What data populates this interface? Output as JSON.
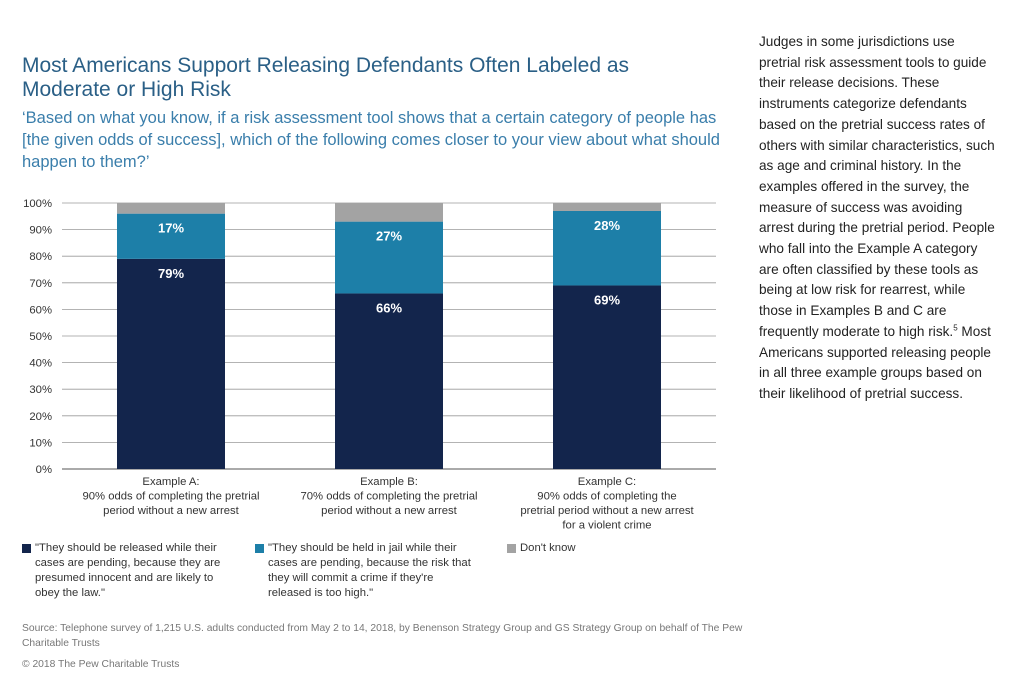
{
  "title": "Most Americans Support Releasing Defendants Often Labeled as Moderate or High Risk",
  "subtitle": "‘Based on what you know, if a risk assessment tool shows that a certain category of people has [the given odds of success], which of the following comes closer to your view about what should happen to them?’",
  "sidebar": {
    "text_before": "Judges in some jurisdictions use pretrial risk assessment tools to guide their release decisions. These instruments categorize defendants based on the pretrial success rates of others with similar characteristics, such as age and criminal history. In the examples offered in the survey, the measure of success was avoiding arrest during the pretrial period. People who fall into the Example A category are often classified by these tools as being at low risk for rearrest, while those in Examples B and C are frequently moderate to high risk.",
    "footnote": "5",
    "text_after": " Most Americans supported releasing people in all three example groups based on their likelihood of pretrial success."
  },
  "chart_data": {
    "type": "bar",
    "stacked": true,
    "categories": [
      [
        "Example A:",
        "90% odds of completing the pretrial",
        "period without a new arrest"
      ],
      [
        "Example B:",
        "70% odds of completing the pretrial",
        "period without a new arrest"
      ],
      [
        "Example C:",
        "90% odds of completing the",
        "pretrial period without a new arrest",
        "for a violent crime"
      ]
    ],
    "series": [
      {
        "name": "\"They should be released while their cases are pending, because they are presumed innocent and are likely to obey the law.\"",
        "values": [
          79,
          66,
          69
        ],
        "labels": [
          "79%",
          "66%",
          "69%"
        ],
        "color": "#13254c"
      },
      {
        "name": "\"They should be held in jail while their cases are pending, because the risk that they will commit a crime if they're released is too high.\"",
        "values": [
          17,
          27,
          28
        ],
        "labels": [
          "17%",
          "27%",
          "28%"
        ],
        "color": "#1d7fa8"
      },
      {
        "name": "Don't know",
        "values": [
          4,
          7,
          3
        ],
        "labels": [
          "",
          "",
          ""
        ],
        "color": "#a3a3a3"
      }
    ],
    "yticks": [
      "0%",
      "10%",
      "20%",
      "30%",
      "40%",
      "50%",
      "60%",
      "70%",
      "80%",
      "90%",
      "100%"
    ],
    "ylim": [
      0,
      100
    ],
    "grid": true
  },
  "legend": {
    "items": [
      {
        "lines": [
          "\"They should be released while their",
          "cases are pending, because they are",
          "presumed innocent and are likely to",
          "obey the law.\""
        ],
        "color": "#13254c"
      },
      {
        "lines": [
          "\"They should be held in jail while their",
          "cases are pending, because the risk that",
          "they will commit a crime if they're",
          "released is too high.\""
        ],
        "color": "#1d7fa8"
      },
      {
        "lines": [
          "Don't know"
        ],
        "color": "#a3a3a3"
      }
    ]
  },
  "source": "Source: Telephone survey of 1,215 U.S. adults conducted from May 2 to 14, 2018, by Benenson Strategy Group and GS Strategy Group on behalf of The Pew Charitable Trusts",
  "copyright": "© 2018 The Pew Charitable Trusts"
}
